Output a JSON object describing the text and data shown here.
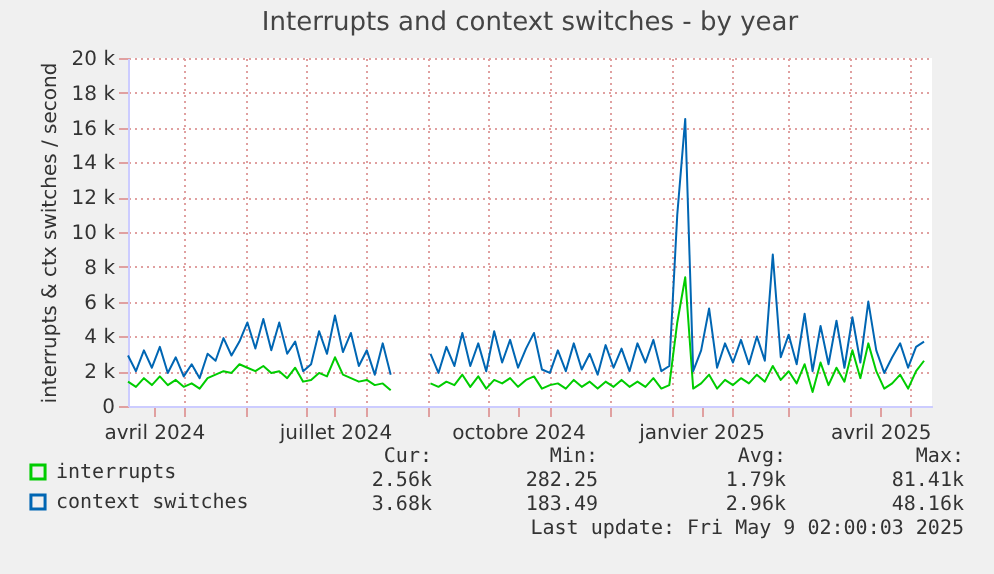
{
  "chart_data": {
    "type": "line",
    "title": "Interrupts and context switches - by year",
    "ylabel": "interrupts & ctx switches / second",
    "x": [
      "2024-04-03",
      "2024-04-07",
      "2024-04-11",
      "2024-04-15",
      "2024-04-19",
      "2024-04-23",
      "2024-04-27",
      "2024-05-01",
      "2024-05-05",
      "2024-05-09",
      "2024-05-13",
      "2024-05-17",
      "2024-05-21",
      "2024-05-25",
      "2024-05-29",
      "2024-06-02",
      "2024-06-06",
      "2024-06-10",
      "2024-06-14",
      "2024-06-18",
      "2024-06-22",
      "2024-06-26",
      "2024-06-30",
      "2024-07-04",
      "2024-07-08",
      "2024-07-12",
      "2024-07-16",
      "2024-07-20",
      "2024-07-24",
      "2024-07-28",
      "2024-08-01",
      "2024-08-05",
      "2024-08-09",
      "2024-08-13",
      "2024-08-25",
      "2024-09-02",
      "2024-09-06",
      "2024-09-10",
      "2024-09-14",
      "2024-09-18",
      "2024-09-22",
      "2024-09-26",
      "2024-09-30",
      "2024-10-04",
      "2024-10-08",
      "2024-10-12",
      "2024-10-16",
      "2024-10-20",
      "2024-10-24",
      "2024-10-28",
      "2024-11-01",
      "2024-11-05",
      "2024-11-09",
      "2024-11-13",
      "2024-11-17",
      "2024-11-21",
      "2024-11-25",
      "2024-11-29",
      "2024-12-03",
      "2024-12-07",
      "2024-12-11",
      "2024-12-15",
      "2024-12-19",
      "2024-12-23",
      "2024-12-27",
      "2024-12-31",
      "2025-01-04",
      "2025-01-08",
      "2025-01-12",
      "2025-01-16",
      "2025-01-20",
      "2025-01-24",
      "2025-01-28",
      "2025-02-01",
      "2025-02-05",
      "2025-02-09",
      "2025-02-13",
      "2025-02-17",
      "2025-02-21",
      "2025-02-25",
      "2025-03-01",
      "2025-03-05",
      "2025-03-09",
      "2025-03-13",
      "2025-03-17",
      "2025-03-21",
      "2025-03-25",
      "2025-03-29",
      "2025-04-02",
      "2025-04-06",
      "2025-04-10",
      "2025-04-14",
      "2025-04-18",
      "2025-04-22",
      "2025-04-26",
      "2025-04-30",
      "2025-05-04",
      "2025-05-08"
    ],
    "series": [
      {
        "name": "interrupts",
        "color": "#00cc00",
        "values": [
          1400,
          1100,
          1600,
          1200,
          1700,
          1200,
          1500,
          1100,
          1300,
          1000,
          1600,
          1800,
          2000,
          1900,
          2400,
          2200,
          2000,
          2300,
          1900,
          2000,
          1600,
          2200,
          1400,
          1500,
          1900,
          1700,
          2800,
          1800,
          1600,
          1400,
          1500,
          1200,
          1300,
          900,
          null,
          1300,
          1100,
          1400,
          1200,
          1800,
          1100,
          1700,
          1000,
          1500,
          1300,
          1600,
          1100,
          1500,
          1700,
          1000,
          1200,
          1300,
          1000,
          1500,
          1100,
          1400,
          1000,
          1400,
          1100,
          1500,
          1100,
          1400,
          1100,
          1600,
          1000,
          1200,
          4800,
          7400,
          1000,
          1300,
          1800,
          1000,
          1500,
          1200,
          1600,
          1300,
          1800,
          1400,
          2300,
          1500,
          2000,
          1300,
          2400,
          800,
          2500,
          1200,
          2200,
          1400,
          3200,
          1600,
          3600,
          2000,
          1000,
          1300,
          1800,
          1000,
          2000,
          2600
        ]
      },
      {
        "name": "context switches",
        "color": "#0066b3",
        "values": [
          2900,
          2000,
          3200,
          2200,
          3400,
          1900,
          2800,
          1700,
          2400,
          1600,
          3000,
          2600,
          3900,
          2900,
          3700,
          4800,
          3300,
          5000,
          3200,
          4800,
          3000,
          3700,
          2000,
          2400,
          4300,
          3000,
          5200,
          3100,
          4200,
          2300,
          3200,
          1800,
          3600,
          1800,
          null,
          3000,
          1900,
          3400,
          2300,
          4200,
          2300,
          3600,
          2000,
          4300,
          2500,
          3800,
          2200,
          3300,
          4200,
          2100,
          1900,
          3200,
          2000,
          3600,
          2100,
          3000,
          1800,
          3500,
          2200,
          3300,
          2000,
          3600,
          2500,
          3800,
          2000,
          2300,
          11000,
          16500,
          2000,
          3200,
          5600,
          2200,
          3600,
          2500,
          3800,
          2400,
          4000,
          2600,
          8700,
          2800,
          4100,
          2400,
          5300,
          2000,
          4600,
          2400,
          4900,
          2200,
          5100,
          2500,
          6000,
          3200,
          1900,
          2800,
          3600,
          2200,
          3400,
          3700
        ]
      }
    ],
    "xlim": [
      "2024-04-03",
      "2025-05-12"
    ],
    "xticks": [
      {
        "value": "2024-04-16",
        "label": "avril 2024"
      },
      {
        "value": "2024-05-01",
        "label": null
      },
      {
        "value": "2024-06-01",
        "label": null
      },
      {
        "value": "2024-07-01",
        "label": null
      },
      {
        "value": "2024-07-16",
        "label": "juillet 2024"
      },
      {
        "value": "2024-08-01",
        "label": null
      },
      {
        "value": "2024-09-01",
        "label": null
      },
      {
        "value": "2024-10-01",
        "label": null
      },
      {
        "value": "2024-10-16",
        "label": "octobre 2024"
      },
      {
        "value": "2024-11-01",
        "label": null
      },
      {
        "value": "2024-12-01",
        "label": null
      },
      {
        "value": "2025-01-01",
        "label": null
      },
      {
        "value": "2025-01-16",
        "label": "janvier 2025"
      },
      {
        "value": "2025-02-01",
        "label": null
      },
      {
        "value": "2025-03-01",
        "label": null
      },
      {
        "value": "2025-04-01",
        "label": null
      },
      {
        "value": "2025-04-16",
        "label": "avril 2025"
      },
      {
        "value": "2025-05-01",
        "label": null
      }
    ],
    "ylim": [
      0,
      20000
    ],
    "yticks": [
      {
        "value": 0,
        "label": "0"
      },
      {
        "value": 2000,
        "label": "2 k"
      },
      {
        "value": 4000,
        "label": "4 k"
      },
      {
        "value": 6000,
        "label": "6 k"
      },
      {
        "value": 8000,
        "label": "8 k"
      },
      {
        "value": 10000,
        "label": "10 k"
      },
      {
        "value": 12000,
        "label": "12 k"
      },
      {
        "value": 14000,
        "label": "14 k"
      },
      {
        "value": 16000,
        "label": "16 k"
      },
      {
        "value": 18000,
        "label": "18 k"
      },
      {
        "value": 20000,
        "label": "20 k"
      }
    ],
    "grid": true,
    "legend": "bottom",
    "annotations": [
      "Cur:",
      "Min:",
      "Avg:",
      "Max:",
      "2.56k",
      "282.25",
      "1.79k",
      "81.41k",
      "3.68k",
      "183.49",
      "2.96k",
      "48.16k",
      "Last update: Fri May  9 02:00:03 2025"
    ]
  }
}
